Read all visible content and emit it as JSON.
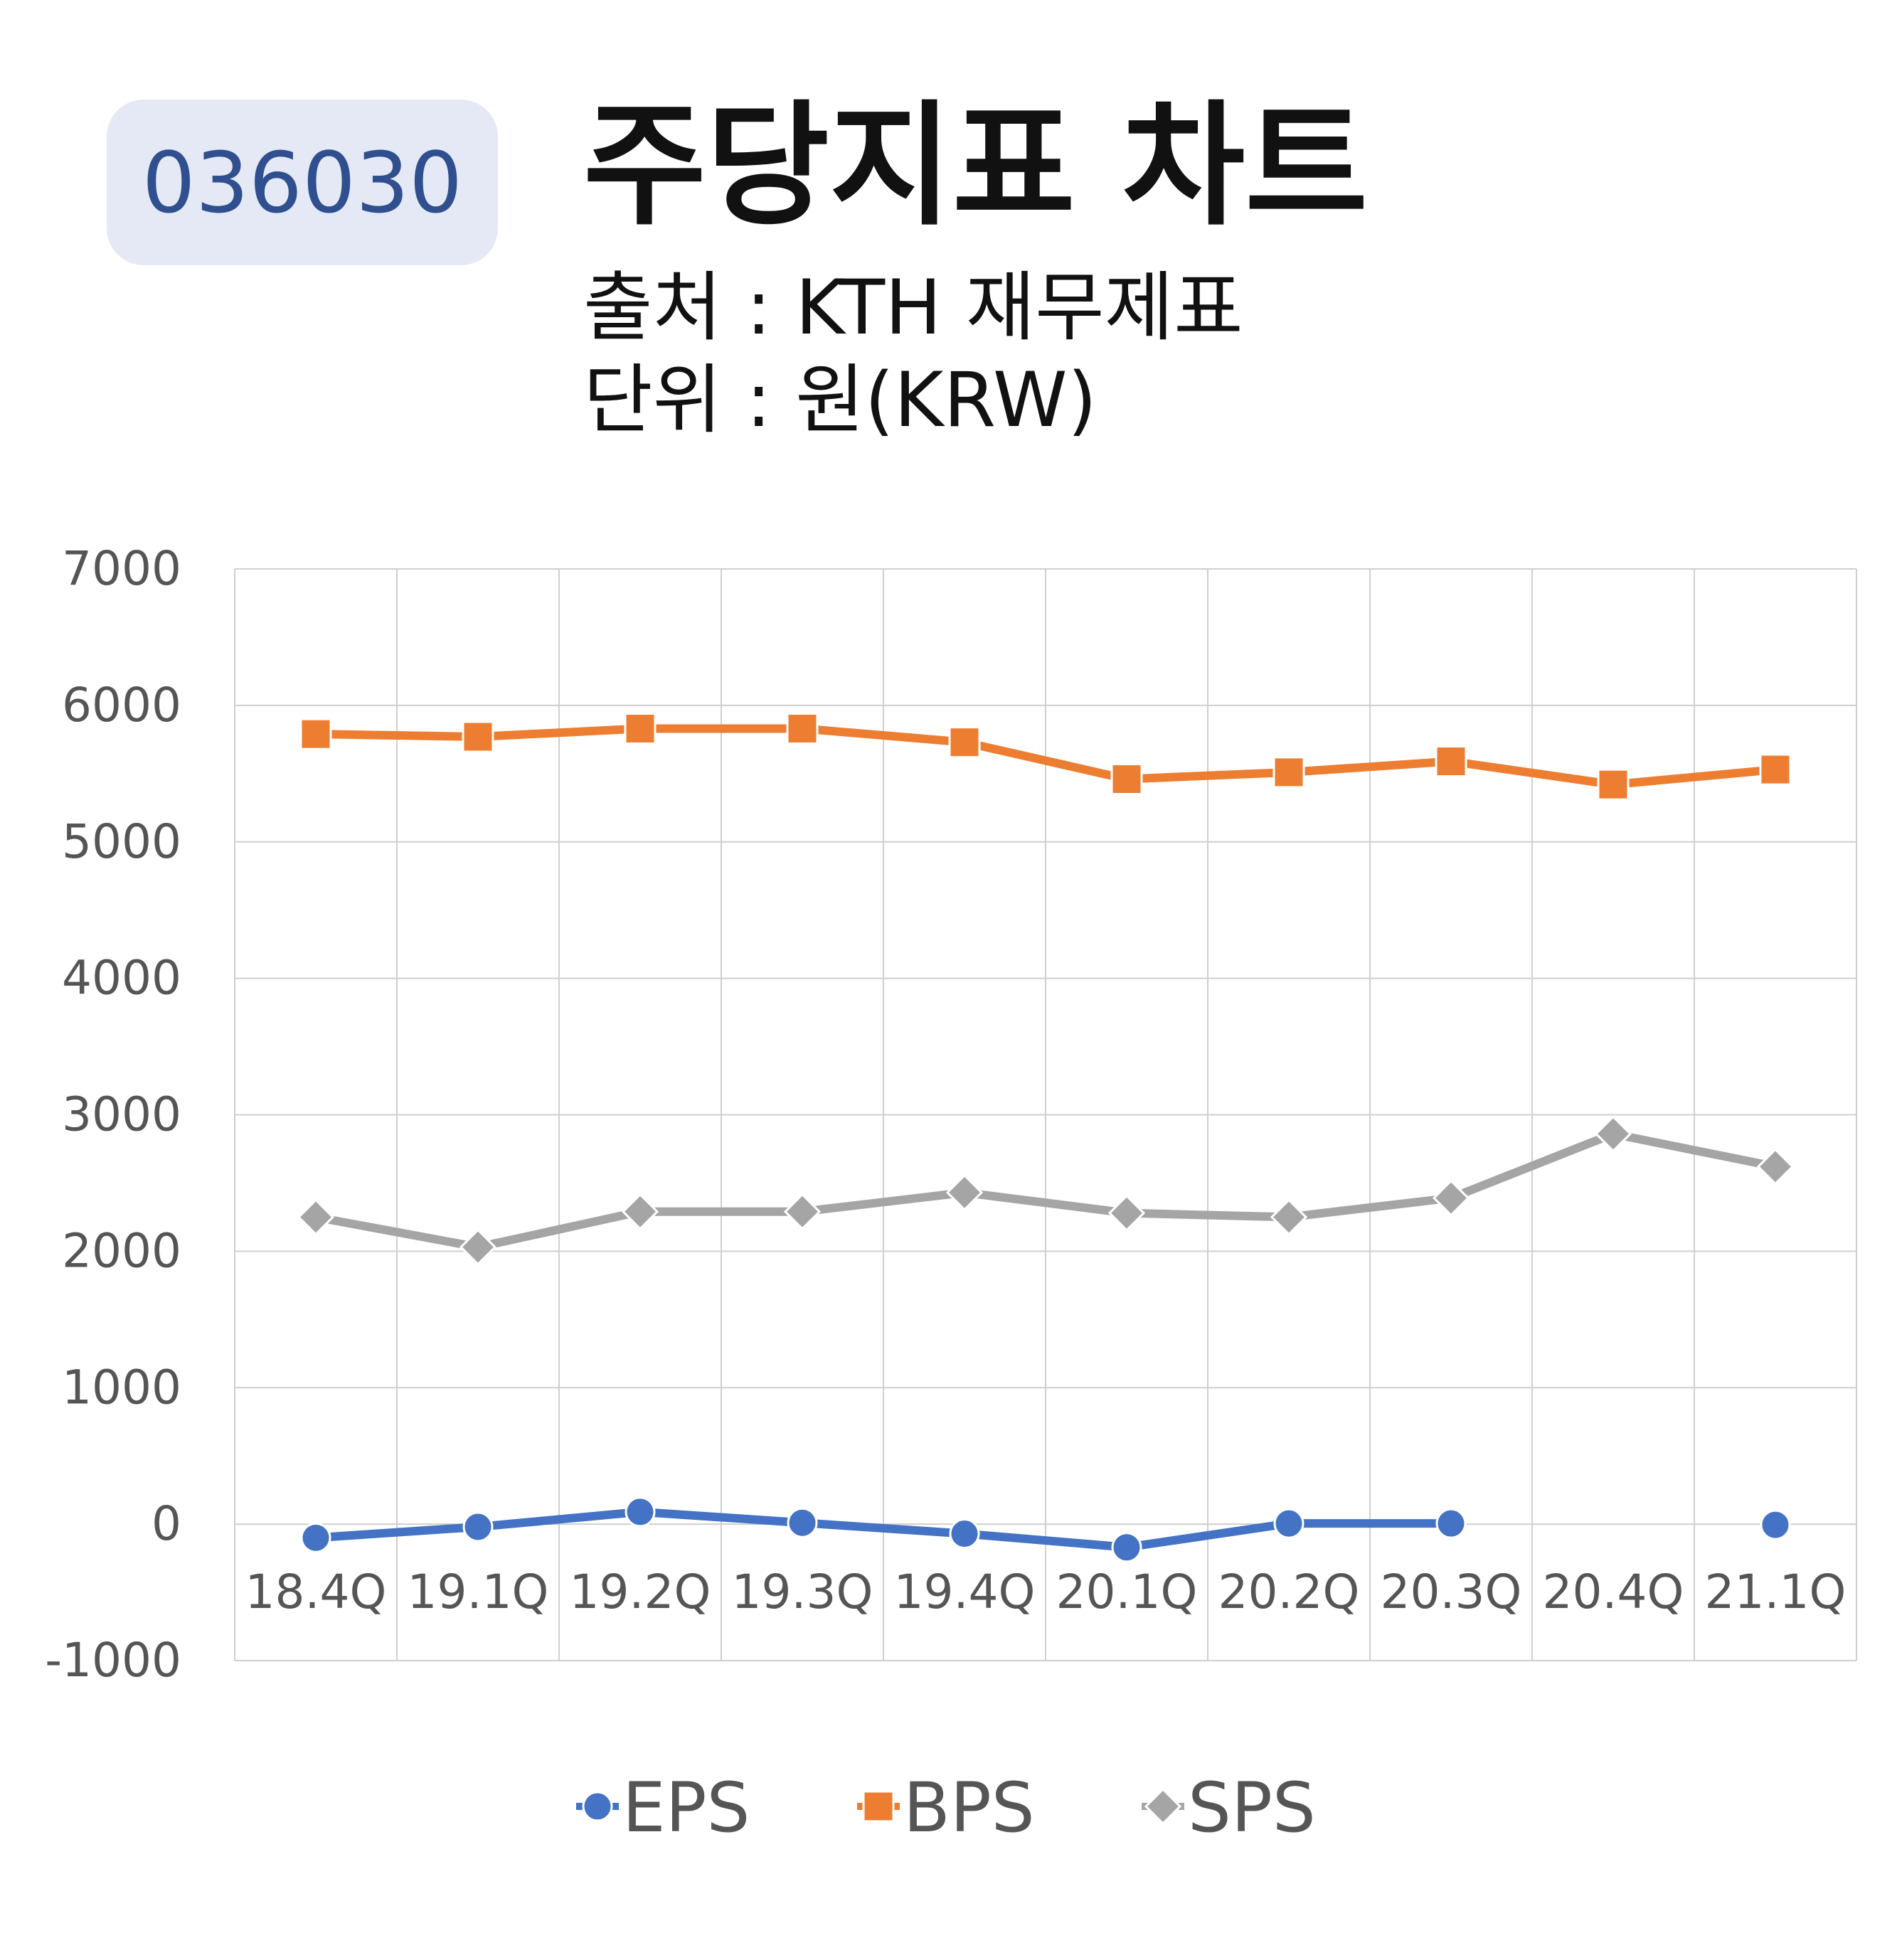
{
  "badge": "036030",
  "title": "주당지표 차트",
  "subtitle_source": "출처 : KTH 재무제표",
  "subtitle_unit": "단위 : 원(KRW)",
  "chart_data": {
    "type": "line",
    "categories": [
      "18.4Q",
      "19.1Q",
      "19.2Q",
      "19.3Q",
      "19.4Q",
      "20.1Q",
      "20.2Q",
      "20.3Q",
      "20.4Q",
      "21.1Q"
    ],
    "ylim": [
      -1000,
      7000
    ],
    "yticks": [
      "7000",
      "6000",
      "5000",
      "4000",
      "3000",
      "2000",
      "1000",
      "0",
      "-1000"
    ],
    "grid": true,
    "legend": "bottom",
    "series": [
      {
        "name": "EPS",
        "color": "#4472c4",
        "marker": "circle",
        "values": [
          -100,
          -20,
          90,
          10,
          -70,
          -170,
          5,
          5,
          null,
          -5
        ]
      },
      {
        "name": "BPS",
        "color": "#ed7d31",
        "marker": "square",
        "values": [
          5790,
          5770,
          5830,
          5830,
          5730,
          5460,
          5510,
          5590,
          5420,
          5530
        ]
      },
      {
        "name": "SPS",
        "color": "#a5a5a5",
        "marker": "diamond",
        "values": [
          2250,
          2030,
          2290,
          2290,
          2430,
          2280,
          2250,
          2390,
          2860,
          2620
        ]
      }
    ]
  }
}
